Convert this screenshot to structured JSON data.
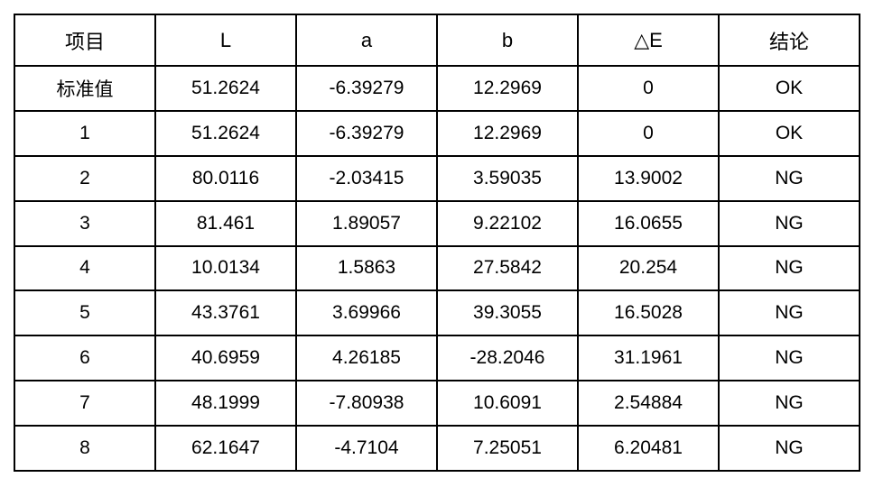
{
  "table": {
    "columns": [
      "项目",
      "L",
      "a",
      "b",
      "△E",
      "结论"
    ],
    "rows": [
      [
        "标准值",
        "51.2624",
        "-6.39279",
        "12.2969",
        "0",
        "OK"
      ],
      [
        "1",
        "51.2624",
        "-6.39279",
        "12.2969",
        "0",
        "OK"
      ],
      [
        "2",
        "80.0116",
        "-2.03415",
        "3.59035",
        "13.9002",
        "NG"
      ],
      [
        "3",
        "81.461",
        "1.89057",
        "9.22102",
        "16.0655",
        "NG"
      ],
      [
        "4",
        "10.0134",
        "1.5863",
        "27.5842",
        "20.254",
        "NG"
      ],
      [
        "5",
        "43.3761",
        "3.69966",
        "39.3055",
        "16.5028",
        "NG"
      ],
      [
        "6",
        "40.6959",
        "4.26185",
        "-28.2046",
        "31.1961",
        "NG"
      ],
      [
        "7",
        "48.1999",
        "-7.80938",
        "10.6091",
        "2.54884",
        "NG"
      ],
      [
        "8",
        "62.1647",
        "-4.7104",
        "7.25051",
        "6.20481",
        "NG"
      ]
    ]
  },
  "chart_data": {
    "type": "table",
    "title": "",
    "columns": [
      "项目",
      "L",
      "a",
      "b",
      "△E",
      "结论"
    ],
    "rows": [
      {
        "item": "标准值",
        "L": 51.2624,
        "a": -6.39279,
        "b": 12.2969,
        "deltaE": 0,
        "result": "OK"
      },
      {
        "item": "1",
        "L": 51.2624,
        "a": -6.39279,
        "b": 12.2969,
        "deltaE": 0,
        "result": "OK"
      },
      {
        "item": "2",
        "L": 80.0116,
        "a": -2.03415,
        "b": 3.59035,
        "deltaE": 13.9002,
        "result": "NG"
      },
      {
        "item": "3",
        "L": 81.461,
        "a": 1.89057,
        "b": 9.22102,
        "deltaE": 16.0655,
        "result": "NG"
      },
      {
        "item": "4",
        "L": 10.0134,
        "a": 1.5863,
        "b": 27.5842,
        "deltaE": 20.254,
        "result": "NG"
      },
      {
        "item": "5",
        "L": 43.3761,
        "a": 3.69966,
        "b": 39.3055,
        "deltaE": 16.5028,
        "result": "NG"
      },
      {
        "item": "6",
        "L": 40.6959,
        "a": 4.26185,
        "b": -28.2046,
        "deltaE": 31.1961,
        "result": "NG"
      },
      {
        "item": "7",
        "L": 48.1999,
        "a": -7.80938,
        "b": 10.6091,
        "deltaE": 2.54884,
        "result": "NG"
      },
      {
        "item": "8",
        "L": 62.1647,
        "a": -4.7104,
        "b": 7.25051,
        "deltaE": 6.20481,
        "result": "NG"
      }
    ]
  },
  "colors": {
    "border": "#000000",
    "text": "#000000",
    "background": "#ffffff"
  }
}
